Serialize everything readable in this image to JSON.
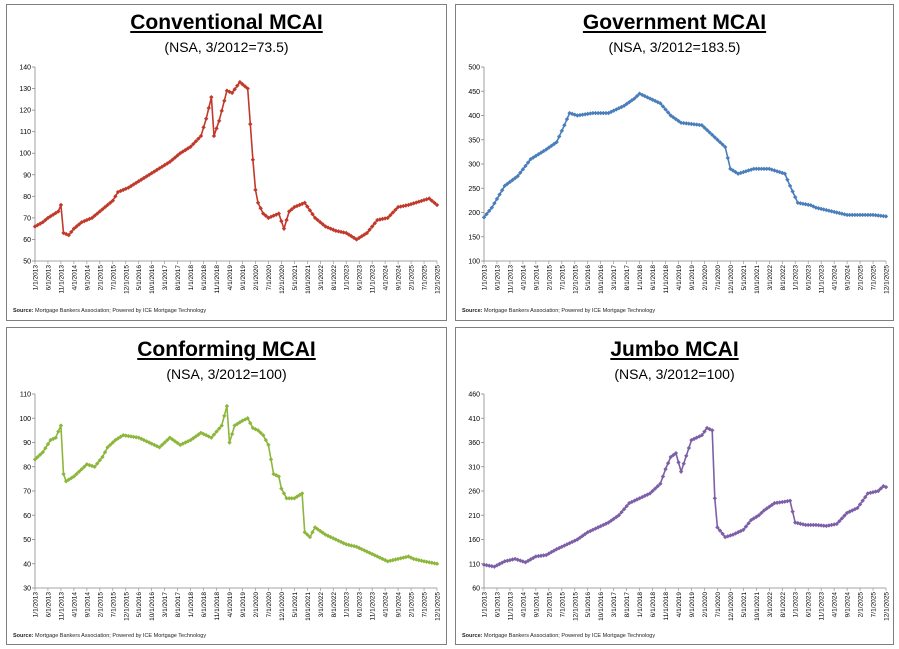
{
  "source_prefix": "Source:",
  "source_text": " Mortgage Bankers Association; Powered by ICE Mortgage Technology",
  "x_labels": [
    "1/1/2013",
    "6/1/2013",
    "11/1/2013",
    "4/1/2014",
    "9/1/2014",
    "2/1/2015",
    "7/1/2015",
    "12/1/2015",
    "5/1/2016",
    "10/1/2016",
    "3/1/2017",
    "8/1/2017",
    "1/1/2018",
    "6/1/2018",
    "11/1/2018",
    "4/1/2019",
    "9/1/2019",
    "2/1/2020",
    "7/1/2020",
    "12/1/2020",
    "5/1/2021",
    "10/1/2021",
    "3/1/2022",
    "8/1/2022",
    "1/1/2023",
    "6/1/2023",
    "11/1/2023",
    "4/1/2024",
    "9/1/2024",
    "2/1/2025",
    "7/1/2025",
    "12/1/2025"
  ],
  "chart_data": [
    {
      "type": "line",
      "title": "Conventional MCAI",
      "subtitle": "(NSA, 3/2012=73.5)",
      "color": "#c0392b",
      "ylim": [
        50,
        140
      ],
      "ystep": 10,
      "x_start": "2013-01",
      "x_end": "2025-12",
      "keyframes": [
        [
          0,
          66
        ],
        [
          3,
          68
        ],
        [
          5,
          70
        ],
        [
          9,
          73
        ],
        [
          10,
          76
        ],
        [
          11,
          63
        ],
        [
          13,
          62
        ],
        [
          15,
          65
        ],
        [
          18,
          68
        ],
        [
          22,
          70
        ],
        [
          26,
          74
        ],
        [
          30,
          78
        ],
        [
          32,
          82
        ],
        [
          36,
          84
        ],
        [
          40,
          87
        ],
        [
          44,
          90
        ],
        [
          48,
          93
        ],
        [
          52,
          96
        ],
        [
          56,
          100
        ],
        [
          60,
          103
        ],
        [
          64,
          108
        ],
        [
          66,
          116
        ],
        [
          68,
          126
        ],
        [
          69,
          108
        ],
        [
          71,
          115
        ],
        [
          74,
          129
        ],
        [
          76,
          128
        ],
        [
          79,
          133
        ],
        [
          82,
          130
        ],
        [
          84,
          97
        ],
        [
          85,
          83
        ],
        [
          86,
          77
        ],
        [
          88,
          72
        ],
        [
          90,
          70
        ],
        [
          94,
          72
        ],
        [
          96,
          65
        ],
        [
          98,
          73
        ],
        [
          100,
          75
        ],
        [
          104,
          77
        ],
        [
          108,
          70
        ],
        [
          112,
          66
        ],
        [
          116,
          64
        ],
        [
          120,
          63
        ],
        [
          124,
          60
        ],
        [
          128,
          63
        ],
        [
          132,
          69
        ],
        [
          136,
          70
        ],
        [
          140,
          75
        ],
        [
          144,
          76
        ],
        [
          152,
          79
        ],
        [
          155,
          76
        ]
      ]
    },
    {
      "type": "line",
      "title": "Government MCAI",
      "subtitle": "(NSA, 3/2012=183.5)",
      "color": "#4a7ebb",
      "ylim": [
        100,
        500
      ],
      "ystep": 50,
      "x_start": "2013-01",
      "x_end": "2025-12",
      "keyframes": [
        [
          0,
          190
        ],
        [
          3,
          210
        ],
        [
          8,
          255
        ],
        [
          13,
          275
        ],
        [
          18,
          310
        ],
        [
          24,
          330
        ],
        [
          28,
          345
        ],
        [
          31,
          380
        ],
        [
          33,
          405
        ],
        [
          36,
          400
        ],
        [
          42,
          405
        ],
        [
          48,
          405
        ],
        [
          54,
          420
        ],
        [
          58,
          435
        ],
        [
          60,
          445
        ],
        [
          64,
          435
        ],
        [
          68,
          425
        ],
        [
          72,
          400
        ],
        [
          76,
          385
        ],
        [
          84,
          380
        ],
        [
          86,
          370
        ],
        [
          90,
          350
        ],
        [
          93,
          335
        ],
        [
          95,
          290
        ],
        [
          98,
          280
        ],
        [
          104,
          290
        ],
        [
          110,
          290
        ],
        [
          116,
          280
        ],
        [
          118,
          255
        ],
        [
          121,
          220
        ],
        [
          126,
          215
        ],
        [
          128,
          210
        ],
        [
          132,
          205
        ],
        [
          136,
          200
        ],
        [
          140,
          195
        ],
        [
          150,
          195
        ],
        [
          155,
          192
        ]
      ]
    },
    {
      "type": "line",
      "title": "Conforming MCAI",
      "subtitle": "(NSA, 3/2012=100)",
      "color": "#8cb63c",
      "ylim": [
        30,
        110
      ],
      "ystep": 10,
      "x_start": "2013-01",
      "x_end": "2025-12",
      "keyframes": [
        [
          0,
          83
        ],
        [
          3,
          86
        ],
        [
          6,
          91
        ],
        [
          8,
          92
        ],
        [
          10,
          97
        ],
        [
          11,
          77
        ],
        [
          12,
          74
        ],
        [
          15,
          76
        ],
        [
          18,
          79
        ],
        [
          20,
          81
        ],
        [
          23,
          80
        ],
        [
          26,
          84
        ],
        [
          28,
          88
        ],
        [
          31,
          91
        ],
        [
          34,
          93
        ],
        [
          40,
          92
        ],
        [
          44,
          90
        ],
        [
          48,
          88
        ],
        [
          52,
          92
        ],
        [
          56,
          89
        ],
        [
          60,
          91
        ],
        [
          64,
          94
        ],
        [
          68,
          92
        ],
        [
          72,
          97
        ],
        [
          74,
          105
        ],
        [
          75,
          90
        ],
        [
          77,
          97
        ],
        [
          80,
          99
        ],
        [
          82,
          100
        ],
        [
          84,
          96
        ],
        [
          86,
          95
        ],
        [
          88,
          93
        ],
        [
          90,
          89
        ],
        [
          92,
          77
        ],
        [
          94,
          76
        ],
        [
          95,
          71
        ],
        [
          97,
          67
        ],
        [
          100,
          67
        ],
        [
          103,
          69
        ],
        [
          104,
          53
        ],
        [
          106,
          51
        ],
        [
          108,
          55
        ],
        [
          112,
          52
        ],
        [
          116,
          50
        ],
        [
          120,
          48
        ],
        [
          124,
          47
        ],
        [
          128,
          45
        ],
        [
          132,
          43
        ],
        [
          136,
          41
        ],
        [
          140,
          42
        ],
        [
          144,
          43
        ],
        [
          146,
          42
        ],
        [
          150,
          41
        ],
        [
          155,
          40
        ]
      ]
    },
    {
      "type": "line",
      "title": "Jumbo MCAI",
      "subtitle": "(NSA, 3/2012=100)",
      "color": "#7d5fa8",
      "ylim": [
        60,
        460
      ],
      "ystep": 50,
      "x_start": "2013-01",
      "x_end": "2025-12",
      "keyframes": [
        [
          0,
          108
        ],
        [
          4,
          104
        ],
        [
          8,
          115
        ],
        [
          12,
          120
        ],
        [
          16,
          113
        ],
        [
          20,
          125
        ],
        [
          24,
          128
        ],
        [
          28,
          140
        ],
        [
          32,
          150
        ],
        [
          36,
          160
        ],
        [
          40,
          175
        ],
        [
          44,
          185
        ],
        [
          48,
          195
        ],
        [
          52,
          210
        ],
        [
          56,
          235
        ],
        [
          60,
          245
        ],
        [
          64,
          255
        ],
        [
          68,
          275
        ],
        [
          70,
          305
        ],
        [
          72,
          330
        ],
        [
          74,
          338
        ],
        [
          76,
          300
        ],
        [
          80,
          365
        ],
        [
          84,
          375
        ],
        [
          86,
          390
        ],
        [
          88,
          385
        ],
        [
          89,
          245
        ],
        [
          90,
          185
        ],
        [
          93,
          165
        ],
        [
          96,
          170
        ],
        [
          100,
          180
        ],
        [
          103,
          200
        ],
        [
          106,
          210
        ],
        [
          108,
          220
        ],
        [
          112,
          235
        ],
        [
          116,
          238
        ],
        [
          118,
          240
        ],
        [
          120,
          195
        ],
        [
          124,
          190
        ],
        [
          128,
          190
        ],
        [
          132,
          188
        ],
        [
          136,
          192
        ],
        [
          140,
          215
        ],
        [
          144,
          225
        ],
        [
          148,
          255
        ],
        [
          152,
          260
        ],
        [
          154,
          270
        ],
        [
          155,
          268
        ]
      ]
    }
  ]
}
